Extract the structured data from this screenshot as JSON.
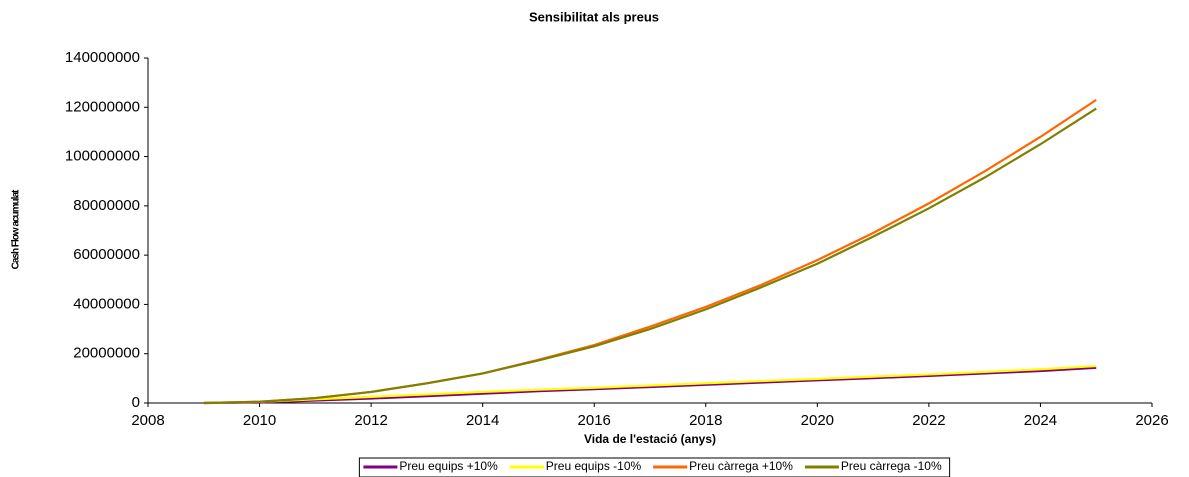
{
  "chart_data": {
    "type": "line",
    "title": "Sensibilitat als preus",
    "xlabel": "Vida de l'estació (anys)",
    "ylabel": "Cash Flow acumulat",
    "x": [
      2009,
      2010,
      2011,
      2012,
      2013,
      2014,
      2015,
      2016,
      2017,
      2018,
      2019,
      2020,
      2021,
      2022,
      2023,
      2024,
      2025
    ],
    "series": [
      {
        "name": "Preu equips +10%",
        "color": "#800080",
        "values": [
          0,
          200000,
          1000000,
          1800000,
          2800000,
          3800000,
          4800000,
          5600000,
          6500000,
          7400000,
          8300000,
          9200000,
          10100000,
          11000000,
          12000000,
          13000000,
          14300000
        ]
      },
      {
        "name": "Preu equips -10%",
        "color": "#ffff00",
        "values": [
          0,
          500000,
          1500000,
          2500000,
          3500000,
          4500000,
          5400000,
          6200000,
          7100000,
          8000000,
          8900000,
          9800000,
          10700000,
          11600000,
          12600000,
          13700000,
          15000000
        ]
      },
      {
        "name": "Preu càrrega +10%",
        "color": "#ff6600",
        "values": [
          0,
          500000,
          2000000,
          4500000,
          8000000,
          12000000,
          17500000,
          23500000,
          31000000,
          39000000,
          48000000,
          58000000,
          69000000,
          81000000,
          94000000,
          108000000,
          123000000
        ]
      },
      {
        "name": "Preu càrrega -10%",
        "color": "#808000",
        "values": [
          0,
          500000,
          2000000,
          4500000,
          8000000,
          12000000,
          17300000,
          23000000,
          30000000,
          38000000,
          47000000,
          56500000,
          67500000,
          79000000,
          91500000,
          105000000,
          119500000
        ]
      }
    ],
    "xlim": [
      2008,
      2026
    ],
    "xticks": [
      2008,
      2010,
      2012,
      2014,
      2016,
      2018,
      2020,
      2022,
      2024,
      2026
    ],
    "ylim": [
      0,
      140000000
    ],
    "yticks": [
      0,
      20000000,
      40000000,
      60000000,
      80000000,
      100000000,
      120000000,
      140000000
    ],
    "legend": "bottom"
  }
}
